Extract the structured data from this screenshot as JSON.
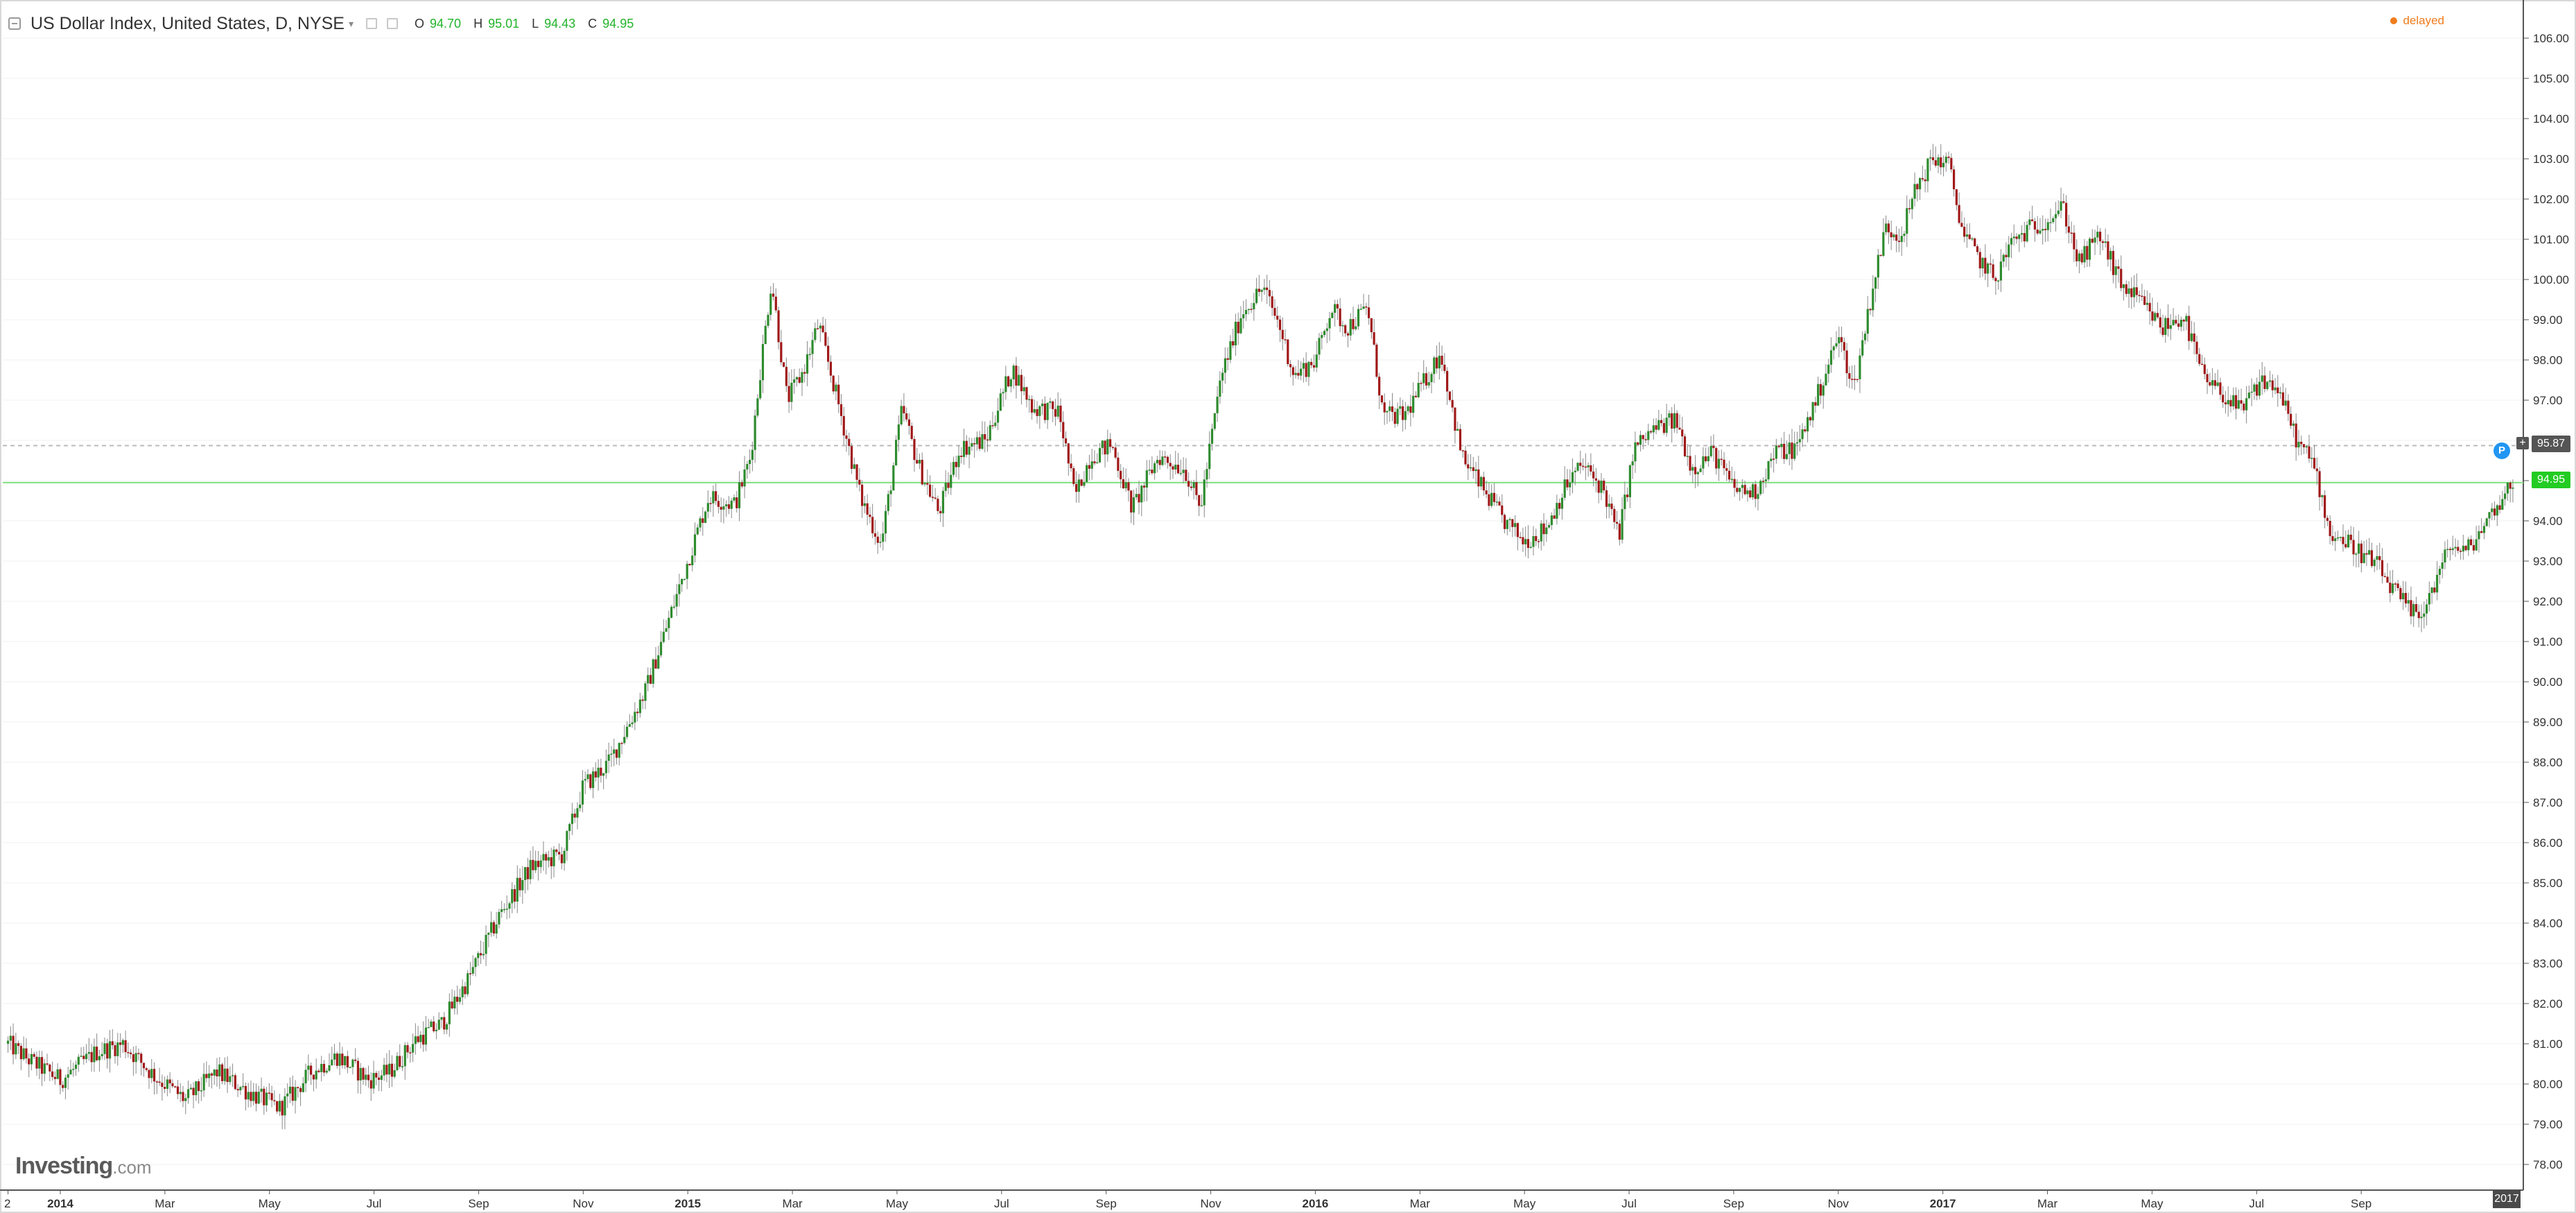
{
  "header": {
    "title": "US Dollar Index, United States, D, NYSE",
    "ohlc": [
      {
        "label": "O",
        "value": "94.70"
      },
      {
        "label": "H",
        "value": "95.01"
      },
      {
        "label": "L",
        "value": "94.43"
      },
      {
        "label": "C",
        "value": "94.95"
      }
    ],
    "delayed": "delayed"
  },
  "logo": {
    "name": "Investing",
    "domain": ".com"
  },
  "colors": {
    "up": "#2e8b2e",
    "down": "#a01818",
    "wick": "#888888",
    "current_line": "#7fe07f",
    "tag_green": "#22cc22",
    "tag_grey": "#555555",
    "badge_blue": "#2196f3",
    "delayed": "#f07c1e"
  },
  "icons": [
    "collapse-icon",
    "caret-down-icon",
    "settings-icon",
    "close-icon",
    "plus-icon",
    "p-badge-icon"
  ],
  "price_tags": {
    "dashed_level": "95.87",
    "current_level": "94.95",
    "p_badge": "P"
  },
  "chart_data": {
    "type": "candlestick",
    "series_name": "",
    "ylim": [
      77.3,
      106.3
    ],
    "y_ticks": [
      "78.00",
      "79.00",
      "80.00",
      "81.00",
      "82.00",
      "83.00",
      "84.00",
      "85.00",
      "86.00",
      "87.00",
      "88.00",
      "89.00",
      "90.00",
      "91.00",
      "92.00",
      "93.00",
      "94.00",
      "95.00",
      "96.00",
      "97.00",
      "98.00",
      "99.00",
      "100.00",
      "101.00",
      "102.00",
      "103.00",
      "104.00",
      "105.00",
      "106.00"
    ],
    "x_labels": [
      {
        "label": "2",
        "t": 0.0,
        "bold": false
      },
      {
        "label": "2014",
        "t": 1.0,
        "bold": true
      },
      {
        "label": "Mar",
        "t": 3.0,
        "bold": false
      },
      {
        "label": "May",
        "t": 5.0,
        "bold": false
      },
      {
        "label": "Jul",
        "t": 7.0,
        "bold": false
      },
      {
        "label": "Sep",
        "t": 9.0,
        "bold": false
      },
      {
        "label": "Nov",
        "t": 11.0,
        "bold": false
      },
      {
        "label": "2015",
        "t": 13.0,
        "bold": true
      },
      {
        "label": "Mar",
        "t": 15.0,
        "bold": false
      },
      {
        "label": "May",
        "t": 17.0,
        "bold": false
      },
      {
        "label": "Jul",
        "t": 19.0,
        "bold": false
      },
      {
        "label": "Sep",
        "t": 21.0,
        "bold": false
      },
      {
        "label": "Nov",
        "t": 23.0,
        "bold": false
      },
      {
        "label": "2016",
        "t": 25.0,
        "bold": true
      },
      {
        "label": "Mar",
        "t": 27.0,
        "bold": false
      },
      {
        "label": "May",
        "t": 29.0,
        "bold": false
      },
      {
        "label": "Jul",
        "t": 31.0,
        "bold": false
      },
      {
        "label": "Sep",
        "t": 33.0,
        "bold": false
      },
      {
        "label": "Nov",
        "t": 35.0,
        "bold": false
      },
      {
        "label": "2017",
        "t": 37.0,
        "bold": true
      },
      {
        "label": "Mar",
        "t": 39.0,
        "bold": false
      },
      {
        "label": "May",
        "t": 41.0,
        "bold": false
      },
      {
        "label": "Jul",
        "t": 43.0,
        "bold": false
      },
      {
        "label": "Sep",
        "t": 45.0,
        "bold": false
      }
    ],
    "x_end_label": "2017",
    "price_trend": [
      [
        0.0,
        81.0
      ],
      [
        0.4,
        80.6
      ],
      [
        1.0,
        80.1
      ],
      [
        1.7,
        80.8
      ],
      [
        2.2,
        81.0
      ],
      [
        2.8,
        80.2
      ],
      [
        3.4,
        79.6
      ],
      [
        4.0,
        80.3
      ],
      [
        4.6,
        79.8
      ],
      [
        5.2,
        79.4
      ],
      [
        5.8,
        80.3
      ],
      [
        6.3,
        80.7
      ],
      [
        6.9,
        80.1
      ],
      [
        7.3,
        80.3
      ],
      [
        7.8,
        81.1
      ],
      [
        8.3,
        81.5
      ],
      [
        8.8,
        82.6
      ],
      [
        9.4,
        84.2
      ],
      [
        10.0,
        85.4
      ],
      [
        10.6,
        85.7
      ],
      [
        11.0,
        87.4
      ],
      [
        11.5,
        88.0
      ],
      [
        12.2,
        89.8
      ],
      [
        12.9,
        92.6
      ],
      [
        13.4,
        94.6
      ],
      [
        13.9,
        94.4
      ],
      [
        14.2,
        95.6
      ],
      [
        14.4,
        97.9
      ],
      [
        14.6,
        100.0
      ],
      [
        14.9,
        97.0
      ],
      [
        15.2,
        97.7
      ],
      [
        15.5,
        98.9
      ],
      [
        15.9,
        96.8
      ],
      [
        16.3,
        94.6
      ],
      [
        16.7,
        93.4
      ],
      [
        17.1,
        96.8
      ],
      [
        17.4,
        95.4
      ],
      [
        17.8,
        94.2
      ],
      [
        18.2,
        95.8
      ],
      [
        18.7,
        96.0
      ],
      [
        19.2,
        97.8
      ],
      [
        19.6,
        96.8
      ],
      [
        20.1,
        96.7
      ],
      [
        20.4,
        94.6
      ],
      [
        20.7,
        95.6
      ],
      [
        21.1,
        95.9
      ],
      [
        21.5,
        94.3
      ],
      [
        22.0,
        95.6
      ],
      [
        22.5,
        95.3
      ],
      [
        22.8,
        94.3
      ],
      [
        23.2,
        97.6
      ],
      [
        23.6,
        99.2
      ],
      [
        24.0,
        99.8
      ],
      [
        24.3,
        98.9
      ],
      [
        24.6,
        97.6
      ],
      [
        25.0,
        98.0
      ],
      [
        25.3,
        99.3
      ],
      [
        25.6,
        98.8
      ],
      [
        26.0,
        99.3
      ],
      [
        26.3,
        96.6
      ],
      [
        26.7,
        96.6
      ],
      [
        27.1,
        97.5
      ],
      [
        27.4,
        98.2
      ],
      [
        27.8,
        95.6
      ],
      [
        28.2,
        94.8
      ],
      [
        28.6,
        94.0
      ],
      [
        29.0,
        93.5
      ],
      [
        29.4,
        93.8
      ],
      [
        29.8,
        94.9
      ],
      [
        30.1,
        95.4
      ],
      [
        30.5,
        94.8
      ],
      [
        30.8,
        93.6
      ],
      [
        31.1,
        95.8
      ],
      [
        31.5,
        96.3
      ],
      [
        31.9,
        96.5
      ],
      [
        32.2,
        95.3
      ],
      [
        32.6,
        95.7
      ],
      [
        33.0,
        94.8
      ],
      [
        33.4,
        94.7
      ],
      [
        33.8,
        95.7
      ],
      [
        34.2,
        95.8
      ],
      [
        34.6,
        97.1
      ],
      [
        35.0,
        98.6
      ],
      [
        35.3,
        97.3
      ],
      [
        35.6,
        99.4
      ],
      [
        35.9,
        101.3
      ],
      [
        36.2,
        101.1
      ],
      [
        36.5,
        102.3
      ],
      [
        36.8,
        103.0
      ],
      [
        37.1,
        102.9
      ],
      [
        37.4,
        101.1
      ],
      [
        37.7,
        100.5
      ],
      [
        38.0,
        100.0
      ],
      [
        38.3,
        100.9
      ],
      [
        38.7,
        101.3
      ],
      [
        39.0,
        101.5
      ],
      [
        39.3,
        101.8
      ],
      [
        39.6,
        100.4
      ],
      [
        40.0,
        101.1
      ],
      [
        40.4,
        99.9
      ],
      [
        40.8,
        99.4
      ],
      [
        41.2,
        98.8
      ],
      [
        41.6,
        99.1
      ],
      [
        42.0,
        97.5
      ],
      [
        42.4,
        97.1
      ],
      [
        42.7,
        96.7
      ],
      [
        43.1,
        97.5
      ],
      [
        43.4,
        97.3
      ],
      [
        43.8,
        95.9
      ],
      [
        44.1,
        95.4
      ],
      [
        44.4,
        93.7
      ],
      [
        44.7,
        93.5
      ],
      [
        45.0,
        93.2
      ],
      [
        45.3,
        92.9
      ],
      [
        45.6,
        92.3
      ],
      [
        45.9,
        91.8
      ],
      [
        46.1,
        91.6
      ],
      [
        46.4,
        92.4
      ],
      [
        46.7,
        93.4
      ],
      [
        47.0,
        93.2
      ],
      [
        47.3,
        93.8
      ],
      [
        47.6,
        94.4
      ],
      [
        47.9,
        94.95
      ]
    ]
  }
}
